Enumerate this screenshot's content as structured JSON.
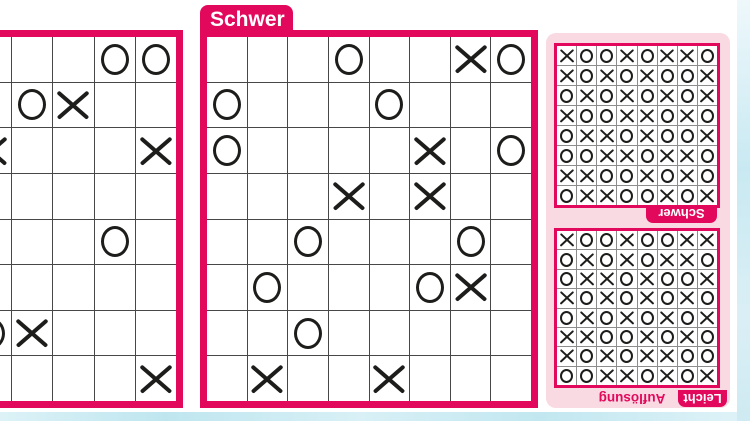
{
  "page": {
    "accent_pink": "#e2095c",
    "panel_pink": "#f9d9e2",
    "page_edge_blue": "#cbe9f2",
    "grid_line_dark": "#474747",
    "grid_line_light": "#8c8c8c",
    "mark_color": "#1d1d1b"
  },
  "left_puzzle": {
    "rows": [
      [
        "",
        "",
        "",
        "O",
        "O"
      ],
      [
        "",
        "O",
        "X",
        "",
        ""
      ],
      [
        "X",
        "",
        "",
        "",
        "X"
      ],
      [
        "",
        "",
        "",
        "",
        ""
      ],
      [
        "",
        "",
        "",
        "O",
        ""
      ],
      [
        "",
        "",
        "",
        "",
        ""
      ],
      [
        "O",
        "X",
        "",
        "",
        ""
      ],
      [
        "",
        "",
        "",
        "",
        "X"
      ]
    ]
  },
  "middle_puzzle": {
    "label": "Schwer",
    "rows": [
      [
        "",
        "",
        "",
        "O",
        "",
        "",
        "X",
        "O"
      ],
      [
        "O",
        "",
        "",
        "",
        "O",
        "",
        "",
        ""
      ],
      [
        "O",
        "",
        "",
        "",
        "",
        "X",
        "",
        "O"
      ],
      [
        "",
        "",
        "",
        "X",
        "",
        "X",
        "",
        ""
      ],
      [
        "",
        "",
        "O",
        "",
        "",
        "",
        "O",
        ""
      ],
      [
        "",
        "O",
        "",
        "",
        "",
        "O",
        "X",
        ""
      ],
      [
        "",
        "",
        "O",
        "",
        "",
        "",
        "",
        ""
      ],
      [
        "",
        "X",
        "",
        "",
        "X",
        "",
        "",
        ""
      ]
    ]
  },
  "solutions": {
    "heading": "Auflösung",
    "schwer": {
      "label": "Schwer",
      "rows": [
        [
          "X",
          "O",
          "O",
          "X",
          "O",
          "X",
          "X",
          "O"
        ],
        [
          "X",
          "O",
          "X",
          "O",
          "X",
          "O",
          "O",
          "X"
        ],
        [
          "O",
          "X",
          "O",
          "X",
          "O",
          "X",
          "O",
          "X"
        ],
        [
          "X",
          "O",
          "O",
          "X",
          "X",
          "O",
          "X",
          "O"
        ],
        [
          "O",
          "X",
          "X",
          "O",
          "X",
          "O",
          "O",
          "X"
        ],
        [
          "O",
          "O",
          "X",
          "X",
          "O",
          "X",
          "X",
          "O"
        ],
        [
          "X",
          "X",
          "O",
          "O",
          "X",
          "O",
          "X",
          "O"
        ],
        [
          "O",
          "X",
          "X",
          "O",
          "O",
          "X",
          "O",
          "X"
        ]
      ]
    },
    "leicht": {
      "label": "Leicht",
      "rows": [
        [
          "X",
          "O",
          "O",
          "X",
          "O",
          "O",
          "X",
          "X"
        ],
        [
          "O",
          "X",
          "O",
          "X",
          "O",
          "X",
          "X",
          "O"
        ],
        [
          "O",
          "X",
          "X",
          "O",
          "X",
          "O",
          "O",
          "X"
        ],
        [
          "X",
          "O",
          "X",
          "O",
          "X",
          "O",
          "X",
          "O"
        ],
        [
          "O",
          "X",
          "O",
          "X",
          "O",
          "X",
          "O",
          "X"
        ],
        [
          "X",
          "X",
          "O",
          "O",
          "X",
          "O",
          "X",
          "O"
        ],
        [
          "X",
          "O",
          "X",
          "O",
          "X",
          "X",
          "O",
          "O"
        ],
        [
          "O",
          "O",
          "X",
          "X",
          "O",
          "X",
          "O",
          "X"
        ]
      ]
    }
  }
}
